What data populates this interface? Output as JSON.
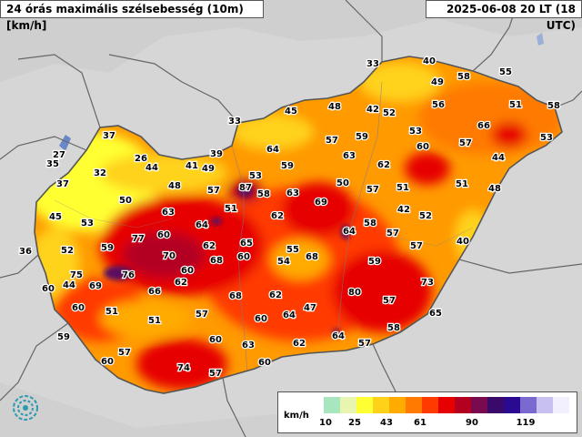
{
  "header": {
    "title": "24 órás maximális szélsebesség (10m) [km/h]",
    "time": "2025-06-08 20 LT (18 UTC)"
  },
  "legend": {
    "unit": "km/h",
    "ticks": [
      "10",
      "25",
      "43",
      "61",
      "90",
      "119"
    ],
    "colors": [
      "#a8e6c0",
      "#e8f5b0",
      "#ffff33",
      "#ffd21a",
      "#ffab00",
      "#ff7a00",
      "#ff3b00",
      "#e60000",
      "#b30020",
      "#7a0a50",
      "#3a0a6a",
      "#2a0a90",
      "#7a6ad0",
      "#c8c0f0",
      "#f2f0ff"
    ]
  },
  "stations": [
    {
      "v": "33"
    },
    {
      "v": "40"
    },
    {
      "v": "55"
    },
    {
      "v": "49"
    },
    {
      "v": "58"
    },
    {
      "v": "45"
    },
    {
      "v": "48"
    },
    {
      "v": "42"
    },
    {
      "v": "52"
    },
    {
      "v": "56"
    },
    {
      "v": "51"
    },
    {
      "v": "58"
    },
    {
      "v": "33"
    },
    {
      "v": "53"
    },
    {
      "v": "66"
    },
    {
      "v": "53"
    },
    {
      "v": "37"
    },
    {
      "v": "64"
    },
    {
      "v": "57"
    },
    {
      "v": "59"
    },
    {
      "v": "60"
    },
    {
      "v": "57"
    },
    {
      "v": "27"
    },
    {
      "v": "26"
    },
    {
      "v": "39"
    },
    {
      "v": "63"
    },
    {
      "v": "35"
    },
    {
      "v": "32"
    },
    {
      "v": "44"
    },
    {
      "v": "41"
    },
    {
      "v": "49"
    },
    {
      "v": "59"
    },
    {
      "v": "62"
    },
    {
      "v": "44"
    },
    {
      "v": "37"
    },
    {
      "v": "48"
    },
    {
      "v": "57"
    },
    {
      "v": "53"
    },
    {
      "v": "87"
    },
    {
      "v": "58"
    },
    {
      "v": "63"
    },
    {
      "v": "50"
    },
    {
      "v": "57"
    },
    {
      "v": "51"
    },
    {
      "v": "51"
    },
    {
      "v": "48"
    },
    {
      "v": "50"
    },
    {
      "v": "69"
    },
    {
      "v": "63"
    },
    {
      "v": "51"
    },
    {
      "v": "62"
    },
    {
      "v": "42"
    },
    {
      "v": "52"
    },
    {
      "v": "45"
    },
    {
      "v": "53"
    },
    {
      "v": "64"
    },
    {
      "v": "58"
    },
    {
      "v": "64"
    },
    {
      "v": "57"
    },
    {
      "v": "77"
    },
    {
      "v": "60"
    },
    {
      "v": "62"
    },
    {
      "v": "65"
    },
    {
      "v": "40"
    },
    {
      "v": "36"
    },
    {
      "v": "52"
    },
    {
      "v": "59"
    },
    {
      "v": "70"
    },
    {
      "v": "68"
    },
    {
      "v": "60"
    },
    {
      "v": "55"
    },
    {
      "v": "54"
    },
    {
      "v": "68"
    },
    {
      "v": "57"
    },
    {
      "v": "75"
    },
    {
      "v": "76"
    },
    {
      "v": "59"
    },
    {
      "v": "60"
    },
    {
      "v": "44"
    },
    {
      "v": "69"
    },
    {
      "v": "60"
    },
    {
      "v": "66"
    },
    {
      "v": "62"
    },
    {
      "v": "68"
    },
    {
      "v": "62"
    },
    {
      "v": "80"
    },
    {
      "v": "57"
    },
    {
      "v": "73"
    },
    {
      "v": "60"
    },
    {
      "v": "51"
    },
    {
      "v": "51"
    },
    {
      "v": "57"
    },
    {
      "v": "60"
    },
    {
      "v": "64"
    },
    {
      "v": "47"
    },
    {
      "v": "65"
    },
    {
      "v": "59"
    },
    {
      "v": "60"
    },
    {
      "v": "63"
    },
    {
      "v": "62"
    },
    {
      "v": "64"
    },
    {
      "v": "57"
    },
    {
      "v": "58"
    },
    {
      "v": "57"
    },
    {
      "v": "60"
    },
    {
      "v": "74"
    },
    {
      "v": "57"
    },
    {
      "v": "60"
    }
  ]
}
